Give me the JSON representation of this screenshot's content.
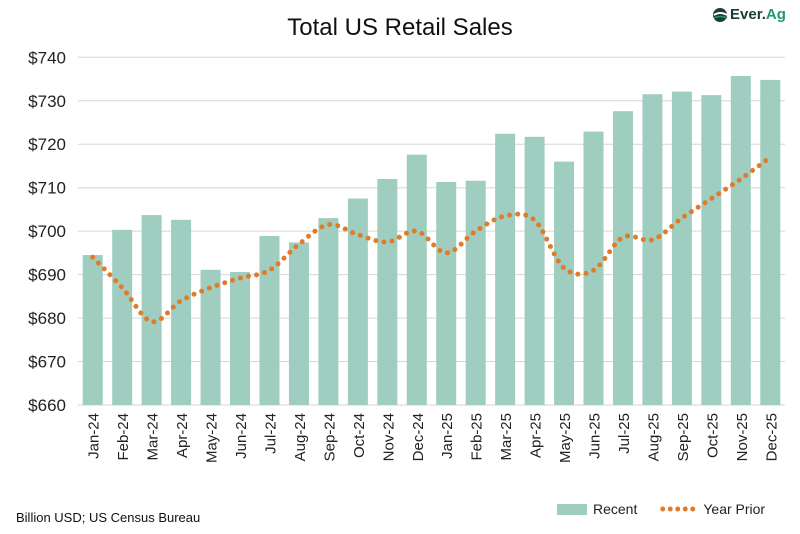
{
  "chart_data": {
    "type": "bar",
    "title": "Total US Retail Sales",
    "categories": [
      "Jan-24",
      "Feb-24",
      "Mar-24",
      "Apr-24",
      "May-24",
      "Jun-24",
      "Jul-24",
      "Aug-24",
      "Sep-24",
      "Oct-24",
      "Nov-24",
      "Dec-24",
      "Jan-25",
      "Feb-25",
      "Mar-25",
      "Apr-25",
      "May-25",
      "Jun-25",
      "Jul-25",
      "Aug-25",
      "Sep-25",
      "Oct-25",
      "Nov-25",
      "Dec-25"
    ],
    "series": [
      {
        "name": "Recent",
        "type": "bar",
        "color": "#9fcdc0",
        "values": [
          694.5,
          700.3,
          703.7,
          702.6,
          691.1,
          690.6,
          698.9,
          697.4,
          703.0,
          707.5,
          712.0,
          717.6,
          711.3,
          711.6,
          722.4,
          721.7,
          716.0,
          722.9,
          727.6,
          731.5,
          732.1,
          731.3,
          735.7,
          734.8
        ]
      },
      {
        "name": "Year Prior",
        "type": "line",
        "style": "dotted",
        "color": "#e07b2a",
        "values": [
          694.0,
          687.0,
          679.2,
          684.0,
          687.0,
          689.2,
          691.0,
          697.0,
          701.5,
          699.2,
          697.5,
          700.0,
          695.0,
          700.0,
          703.5,
          702.5,
          691.5,
          691.0,
          698.6,
          698.0,
          703.0,
          707.5,
          712.0,
          717.0
        ]
      }
    ],
    "ylim": [
      660,
      740
    ],
    "yticks": [
      740,
      730,
      720,
      710,
      700,
      690,
      680,
      670,
      660
    ],
    "ytick_labels": [
      "$740",
      "$730",
      "$720",
      "$710",
      "$700",
      "$690",
      "$680",
      "$670",
      "$660"
    ],
    "grid": true,
    "legend": "bottom-right",
    "xlabel": "",
    "ylabel": ""
  },
  "source": "Billion USD; US Census Bureau",
  "logo": {
    "text": "Ever.Ag",
    "part1": "Ever.",
    "part2": "Ag"
  }
}
